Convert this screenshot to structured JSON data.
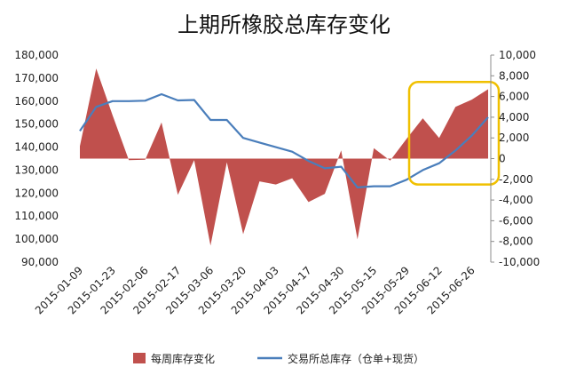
{
  "chart_data": {
    "type": "area",
    "title": "上期所橡胶总库存变化",
    "x_tick_labels": [
      "2015-01-09",
      "2015-01-23",
      "2015-02-06",
      "2015-02-17",
      "2015-03-06",
      "2015-03-20",
      "2015-04-03",
      "2015-04-17",
      "2015-04-30",
      "2015-05-15",
      "2015-05-29",
      "2015-06-12",
      "2015-06-26"
    ],
    "x": [
      "2015-01-09",
      "2015-01-16",
      "2015-01-23",
      "2015-01-30",
      "2015-02-06",
      "2015-02-13",
      "2015-02-17",
      "2015-02-27",
      "2015-03-06",
      "2015-03-13",
      "2015-03-20",
      "2015-03-27",
      "2015-04-03",
      "2015-04-10",
      "2015-04-17",
      "2015-04-24",
      "2015-04-30",
      "2015-05-08",
      "2015-05-15",
      "2015-05-22",
      "2015-05-29",
      "2015-06-05",
      "2015-06-12",
      "2015-06-19",
      "2015-06-26",
      "2015-07-03"
    ],
    "y_left": {
      "ticks": [
        "90,000",
        "100,000",
        "110,000",
        "120,000",
        "130,000",
        "140,000",
        "150,000",
        "160,000",
        "170,000",
        "180,000"
      ],
      "range": [
        90000,
        180000
      ]
    },
    "y_right": {
      "ticks": [
        "-10,000",
        "-8,000",
        "-6,000",
        "-4,000",
        "-2,000",
        "0",
        "2,000",
        "4,000",
        "6,000",
        "8,000",
        "10,000"
      ],
      "range": [
        -10000,
        10000
      ]
    },
    "series": [
      {
        "name": "每周库存变化",
        "kind": "area",
        "axis": "right",
        "color": "#c0504d",
        "values": [
          1200,
          8700,
          4200,
          -150,
          -100,
          3500,
          -3500,
          -150,
          -8400,
          -350,
          -7300,
          -2200,
          -2500,
          -1900,
          -4200,
          -3400,
          800,
          -7800,
          1000,
          -200,
          1900,
          3900,
          2000,
          5000,
          5700,
          6700
        ]
      },
      {
        "name": "交易所总库存（仓单+现货）",
        "kind": "line",
        "axis": "left",
        "color": "#4a7ebb",
        "values": [
          147000,
          157500,
          160000,
          160000,
          160200,
          163000,
          160300,
          160500,
          151800,
          151800,
          144000,
          142000,
          140000,
          138000,
          134000,
          130800,
          131500,
          122500,
          123000,
          123000,
          125800,
          130000,
          133000,
          138500,
          145000,
          153000
        ]
      }
    ],
    "annotation": {
      "shape": "rounded-rectangle",
      "color": "#f0c000"
    },
    "legend_position": "bottom"
  }
}
